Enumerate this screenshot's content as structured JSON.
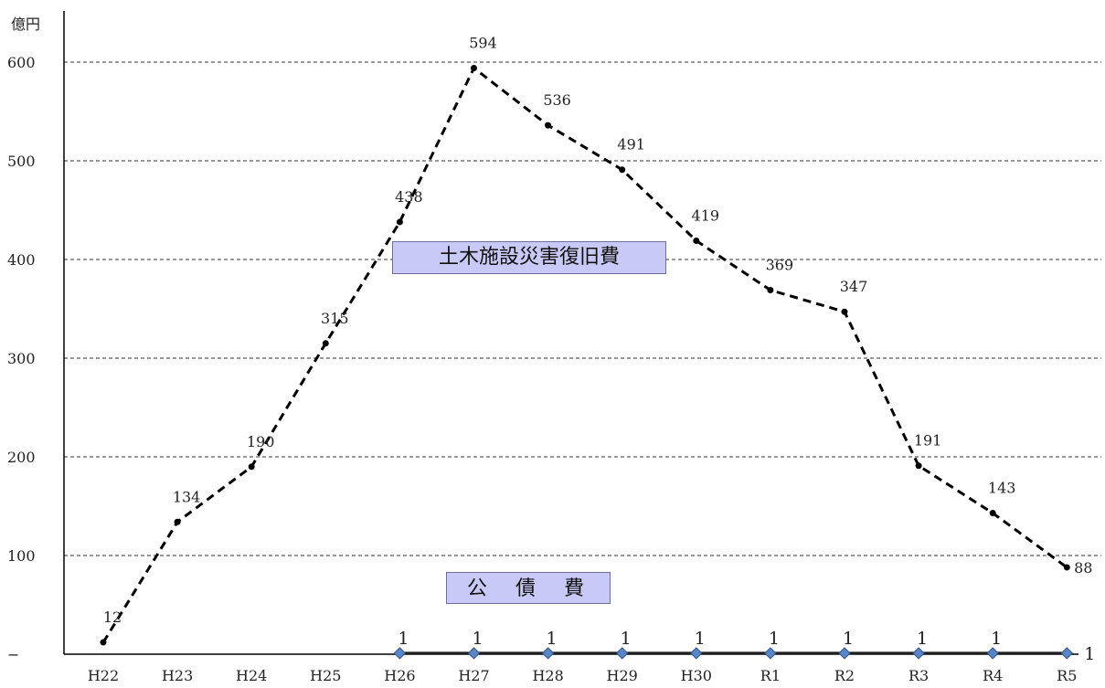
{
  "chart_data": {
    "type": "line",
    "unit_label": "億円",
    "categories": [
      "H22",
      "H23",
      "H24",
      "H25",
      "H26",
      "H27",
      "H28",
      "H29",
      "H30",
      "R1",
      "R2",
      "R3",
      "R4",
      "R5"
    ],
    "y_ticks": [
      "600",
      "500",
      "400",
      "300",
      "200",
      "100",
      "−"
    ],
    "ylim": [
      0,
      600
    ],
    "grid": true,
    "series": [
      {
        "name": "土木施設災害復旧費",
        "values": [
          12,
          134,
          190,
          315,
          438,
          594,
          536,
          491,
          419,
          369,
          347,
          191,
          143,
          88
        ],
        "style": "dashed",
        "color": "#000000"
      },
      {
        "name": "公 債 費",
        "x": [
          "H26",
          "H27",
          "H28",
          "H29",
          "H30",
          "R1",
          "R2",
          "R3",
          "R4",
          "R5"
        ],
        "values": [
          1,
          1,
          1,
          1,
          1,
          1,
          1,
          1,
          1,
          1
        ],
        "style": "solid",
        "marker": "diamond",
        "color": "#1f1f1f",
        "marker_color": "#5b86c5"
      }
    ]
  }
}
